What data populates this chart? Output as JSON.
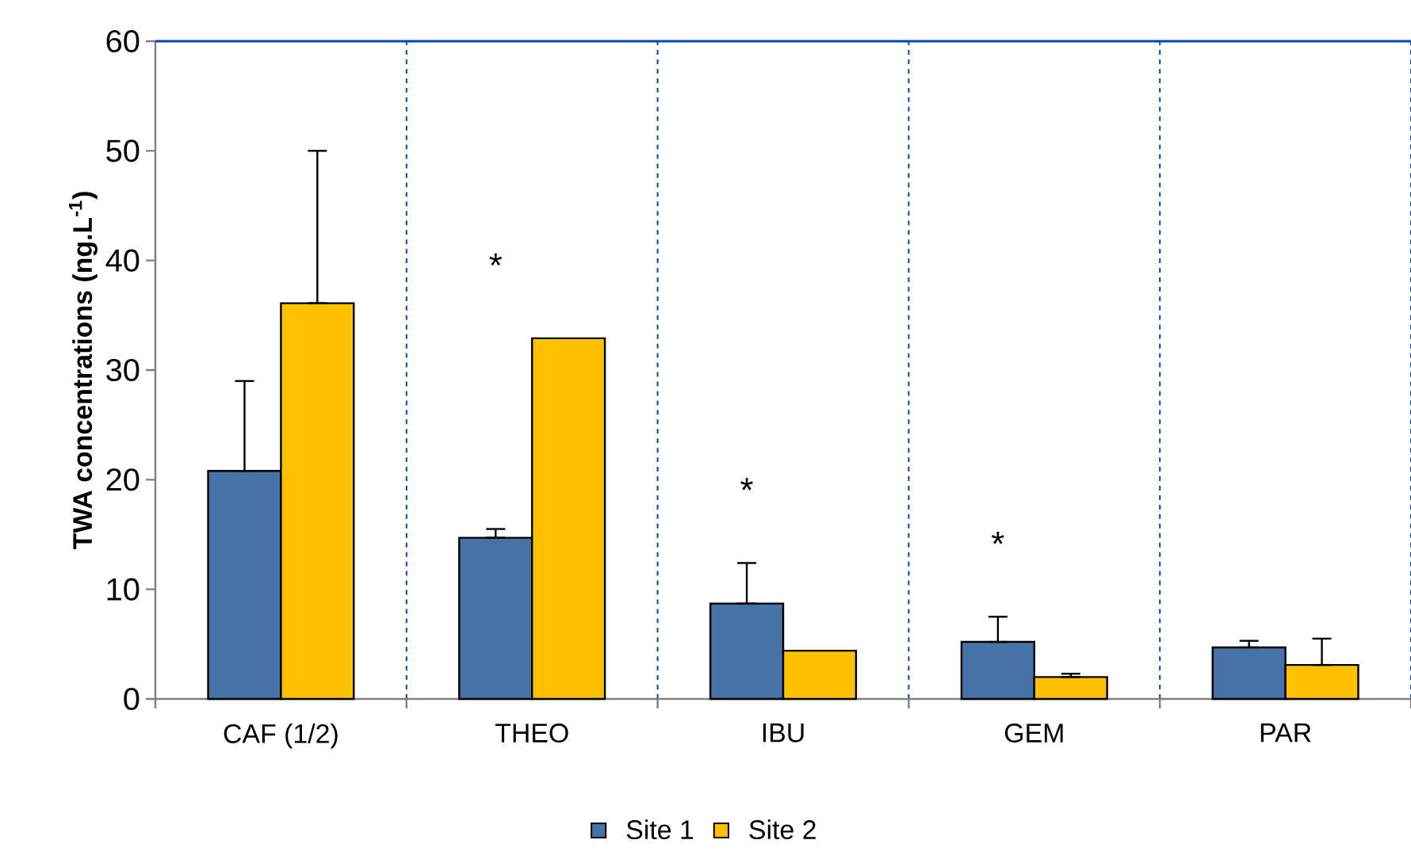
{
  "chart_data": {
    "type": "bar",
    "ylabel": "TWA concentrations (ng.L$^{-1}$)",
    "categories": [
      "CAF (1/2)",
      "THEO",
      "IBU",
      "GEM",
      "PAR"
    ],
    "series": [
      {
        "name": "Site 1",
        "color": "#4672a8",
        "values": [
          20.8,
          14.7,
          8.7,
          5.2,
          4.7
        ],
        "errors": [
          [
            20.8,
            29.0
          ],
          [
            14.7,
            15.5
          ],
          [
            8.7,
            12.4
          ],
          [
            5.2,
            7.5
          ],
          [
            4.7,
            5.3
          ]
        ]
      },
      {
        "name": "Site 2",
        "color": "#ffc000",
        "values": [
          36.1,
          32.9,
          4.4,
          2.0,
          3.1
        ],
        "errors": [
          [
            36.1,
            50.0
          ],
          null,
          null,
          [
            2.0,
            2.3
          ],
          [
            3.1,
            5.5
          ]
        ]
      }
    ],
    "ylim": [
      0,
      60
    ],
    "yticks": [
      0,
      10,
      20,
      30,
      40,
      50,
      60
    ],
    "grid": "x",
    "legend": "bottom",
    "annotations": [
      "*",
      "*",
      "*"
    ]
  }
}
